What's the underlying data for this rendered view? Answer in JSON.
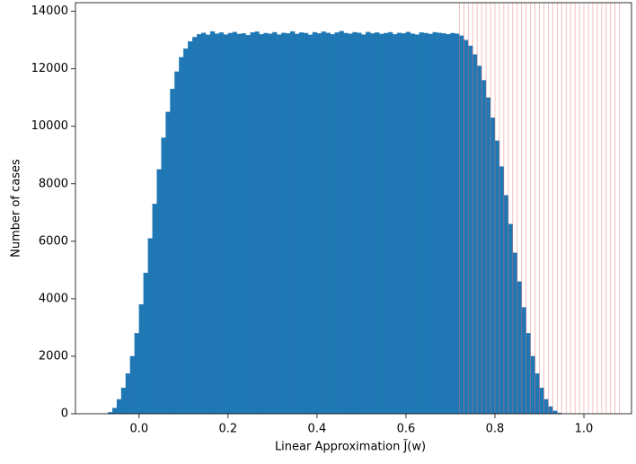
{
  "chart_data": {
    "type": "histogram",
    "xlabel": "Linear Approximation  J̃(w)",
    "ylabel": "Number of cases",
    "color": "#1f77b4",
    "bins": [
      -0.07,
      -0.06,
      -0.05,
      -0.04,
      -0.03,
      -0.02,
      -0.01,
      0,
      0.01,
      0.02,
      0.03,
      0.04,
      0.05,
      0.06,
      0.07,
      0.08,
      0.09,
      0.1,
      0.11,
      0.12,
      0.13,
      0.14,
      0.15,
      0.16,
      0.17,
      0.18,
      0.19,
      0.2,
      0.21,
      0.22,
      0.23,
      0.24,
      0.25,
      0.26,
      0.27,
      0.28,
      0.29,
      0.3,
      0.31,
      0.32,
      0.33,
      0.34,
      0.35,
      0.36,
      0.37,
      0.38,
      0.39,
      0.4,
      0.41,
      0.42,
      0.43,
      0.44,
      0.45,
      0.46,
      0.47,
      0.48,
      0.49,
      0.5,
      0.51,
      0.52,
      0.53,
      0.54,
      0.55,
      0.56,
      0.57,
      0.58,
      0.59,
      0.6,
      0.61,
      0.62,
      0.63,
      0.64,
      0.65,
      0.66,
      0.67,
      0.68,
      0.69,
      0.7,
      0.71,
      0.72,
      0.73,
      0.74,
      0.75,
      0.76,
      0.77,
      0.78,
      0.79,
      0.8,
      0.81,
      0.82,
      0.83,
      0.84,
      0.85,
      0.86,
      0.87,
      0.88,
      0.89,
      0.9,
      0.91,
      0.92,
      0.93,
      0.94,
      0.95
    ],
    "counts": [
      50,
      200,
      500,
      900,
      1400,
      2000,
      2800,
      3800,
      4900,
      6100,
      7300,
      8500,
      9600,
      10500,
      11300,
      11900,
      12400,
      12700,
      12950,
      13100,
      13200,
      13250,
      13180,
      13300,
      13220,
      13260,
      13190,
      13240,
      13280,
      13210,
      13230,
      13170,
      13260,
      13290,
      13200,
      13240,
      13220,
      13270,
      13190,
      13250,
      13230,
      13300,
      13210,
      13260,
      13240,
      13180,
      13270,
      13230,
      13290,
      13250,
      13200,
      13260,
      13310,
      13240,
      13220,
      13270,
      13250,
      13190,
      13280,
      13230,
      13260,
      13210,
      13240,
      13270,
      13200,
      13250,
      13230,
      13280,
      13220,
      13190,
      13260,
      13240,
      13210,
      13270,
      13250,
      13230,
      13200,
      13240,
      13220,
      13150,
      13000,
      12800,
      12500,
      12100,
      11600,
      11000,
      10300,
      9500,
      8600,
      7600,
      6600,
      5600,
      4600,
      3700,
      2800,
      2000,
      1400,
      900,
      500,
      250,
      100,
      30
    ],
    "reference_lines": {
      "color": "#e8706f",
      "x": [
        0.72,
        0.73,
        0.74,
        0.75,
        0.76,
        0.77,
        0.78,
        0.79,
        0.8,
        0.81,
        0.82,
        0.83,
        0.84,
        0.85,
        0.86,
        0.87,
        0.88,
        0.89,
        0.9,
        0.91,
        0.92,
        0.93,
        0.94,
        0.95,
        0.96,
        0.97,
        0.98,
        0.99,
        1,
        1.01,
        1.02,
        1.03,
        1.04,
        1.05,
        1.06,
        1.07,
        1.08
      ]
    },
    "xlim": [
      -0.143,
      1.107
    ],
    "ylim": [
      0,
      14300
    ],
    "xticks": [
      {
        "value": 0,
        "label": "0.0"
      },
      0.2,
      0.4,
      0.6,
      0.8,
      {
        "value": 1,
        "label": "1.0"
      }
    ],
    "yticks": [
      0,
      2000,
      4000,
      6000,
      8000,
      10000,
      12000,
      14000
    ]
  }
}
